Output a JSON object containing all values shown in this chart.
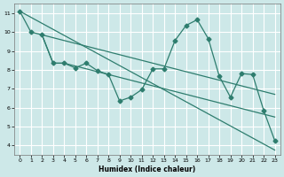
{
  "xlabel": "Humidex (Indice chaleur)",
  "background_color": "#cde8e8",
  "grid_color": "#ffffff",
  "line_color": "#2e7d6e",
  "xlim": [
    -0.5,
    23.5
  ],
  "ylim": [
    3.5,
    11.5
  ],
  "xticks": [
    0,
    1,
    2,
    3,
    4,
    5,
    6,
    7,
    8,
    9,
    10,
    11,
    12,
    13,
    14,
    15,
    16,
    17,
    18,
    19,
    20,
    21,
    22,
    23
  ],
  "yticks": [
    4,
    5,
    6,
    7,
    8,
    9,
    10,
    11
  ],
  "line1_x": [
    0,
    23
  ],
  "line1_y": [
    11.1,
    3.75
  ],
  "line2_x": [
    0,
    1,
    2,
    3,
    4,
    5,
    6,
    7,
    8,
    9,
    10,
    11,
    12,
    13,
    14,
    15,
    16,
    17,
    18,
    19,
    20,
    21,
    22,
    23
  ],
  "line2_y": [
    11.1,
    10.0,
    9.85,
    9.7,
    9.55,
    9.4,
    9.25,
    9.1,
    8.95,
    8.8,
    8.65,
    8.5,
    8.35,
    8.2,
    8.05,
    7.9,
    7.75,
    7.6,
    7.45,
    7.3,
    7.15,
    7.0,
    6.85,
    6.7
  ],
  "line3_x": [
    2,
    3,
    4,
    5,
    6,
    7,
    8,
    9,
    10,
    11,
    12,
    13,
    14,
    15,
    16,
    17,
    18,
    19,
    20,
    21,
    22,
    23
  ],
  "line3_y": [
    9.85,
    8.35,
    8.35,
    8.2,
    8.05,
    7.9,
    7.75,
    7.6,
    7.45,
    7.3,
    7.15,
    7.0,
    6.85,
    6.7,
    6.55,
    6.4,
    6.25,
    6.1,
    5.95,
    5.8,
    5.65,
    5.5
  ],
  "line4_x": [
    2,
    3,
    4,
    5,
    6,
    7,
    8,
    9,
    10,
    11,
    12,
    13,
    14,
    15,
    16,
    17,
    18,
    19,
    20,
    21,
    22,
    23
  ],
  "line4_y": [
    9.85,
    8.35,
    8.35,
    8.1,
    8.35,
    7.95,
    7.75,
    6.35,
    6.55,
    6.95,
    8.05,
    8.05,
    9.55,
    10.35,
    10.65,
    9.65,
    7.65,
    6.55,
    7.8,
    7.75,
    5.85,
    4.25
  ]
}
